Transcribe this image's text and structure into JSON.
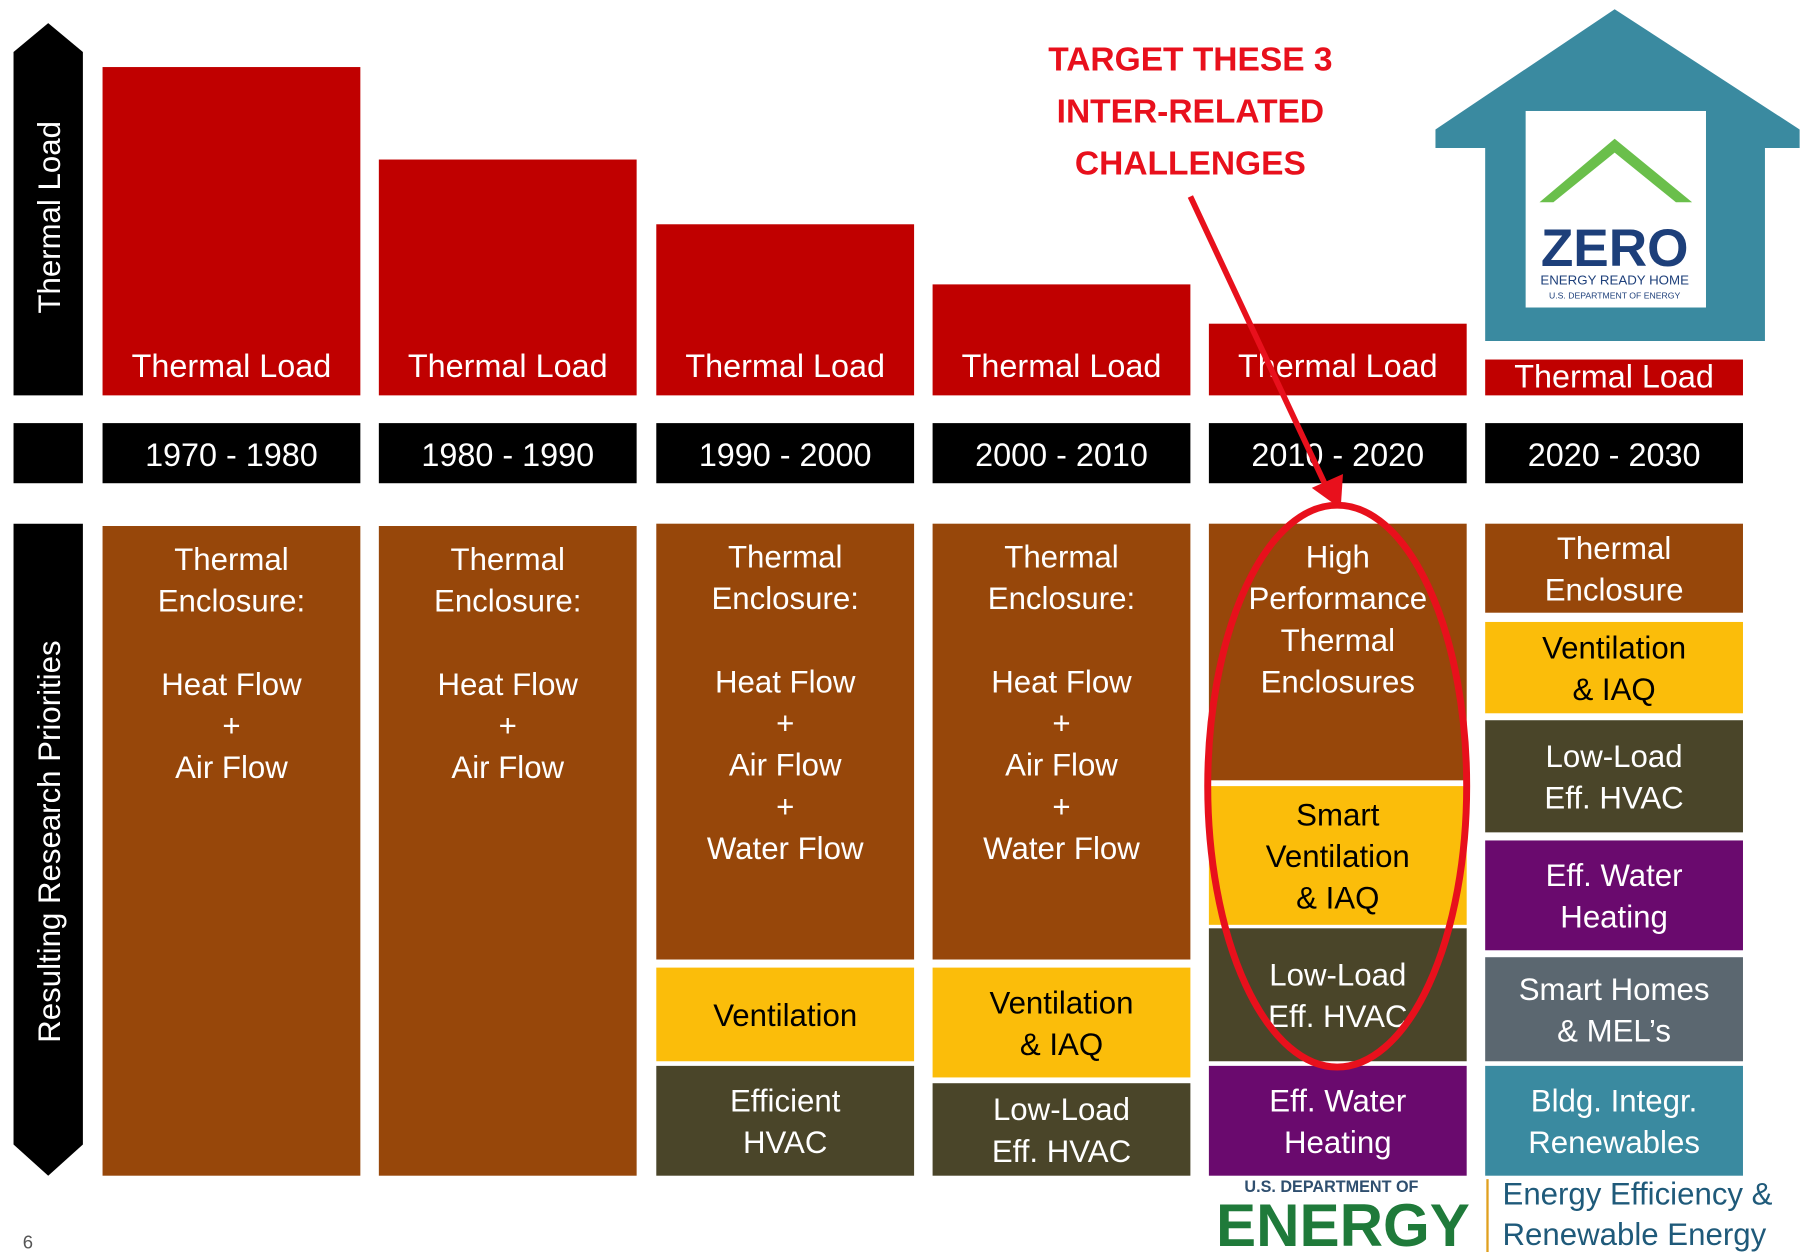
{
  "axis_labels": {
    "top": "Thermal Load",
    "bottom": "Resulting Research Priorities"
  },
  "annotation": [
    "TARGET THESE 3",
    "INTER-RELATED",
    "CHALLENGES"
  ],
  "columns": [
    {
      "thermal_load": "Thermal Load",
      "period": "1970 - 1980",
      "blocks": [
        {
          "paragraphs": [
            [
              "Thermal",
              "Enclosure:"
            ],
            [
              "Heat Flow",
              "+",
              "Air Flow"
            ]
          ]
        }
      ]
    },
    {
      "thermal_load": "Thermal Load",
      "period": "1980 - 1990",
      "blocks": [
        {
          "paragraphs": [
            [
              "Thermal",
              "Enclosure:"
            ],
            [
              "Heat Flow",
              "+",
              "Air Flow"
            ]
          ]
        }
      ]
    },
    {
      "thermal_load": "Thermal Load",
      "period": "1990 - 2000",
      "blocks": [
        {
          "paragraphs": [
            [
              "Thermal",
              "Enclosure:"
            ],
            [
              "Heat Flow",
              "+",
              "Air Flow",
              "+",
              "Water Flow"
            ]
          ]
        },
        {
          "paragraphs": [
            [
              "Ventilation"
            ]
          ]
        },
        {
          "paragraphs": [
            [
              "Efficient",
              "HVAC"
            ]
          ]
        }
      ]
    },
    {
      "thermal_load": "Thermal Load",
      "period": "2000 - 2010",
      "blocks": [
        {
          "paragraphs": [
            [
              "Thermal",
              "Enclosure:"
            ],
            [
              "Heat Flow",
              "+",
              "Air Flow",
              "+",
              "Water Flow"
            ]
          ]
        },
        {
          "paragraphs": [
            [
              "Ventilation",
              "& IAQ"
            ]
          ]
        },
        {
          "paragraphs": [
            [
              "Low-Load",
              "Eff. HVAC"
            ]
          ]
        }
      ]
    },
    {
      "thermal_load": "Thermal Load",
      "period": "2010 - 2020",
      "blocks": [
        {
          "paragraphs": [
            [
              "High",
              "Performance",
              "Thermal",
              "Enclosures"
            ]
          ]
        },
        {
          "paragraphs": [
            [
              "Smart",
              "Ventilation",
              "& IAQ"
            ]
          ]
        },
        {
          "paragraphs": [
            [
              "Low-Load",
              "Eff. HVAC"
            ]
          ]
        },
        {
          "paragraphs": [
            [
              "Eff. Water",
              "Heating"
            ]
          ]
        }
      ]
    },
    {
      "thermal_load": "Thermal Load",
      "period": "2020 - 2030",
      "blocks": [
        {
          "paragraphs": [
            [
              "Thermal",
              "Enclosure"
            ]
          ]
        },
        {
          "paragraphs": [
            [
              "Ventilation",
              "& IAQ"
            ]
          ]
        },
        {
          "paragraphs": [
            [
              "Low-Load",
              "Eff. HVAC"
            ]
          ]
        },
        {
          "paragraphs": [
            [
              "Eff. Water",
              "Heating"
            ]
          ]
        },
        {
          "paragraphs": [
            [
              "Smart Homes",
              "& MEL’s"
            ]
          ]
        },
        {
          "paragraphs": [
            [
              "Bldg. Integr.",
              "Renewables"
            ]
          ]
        }
      ]
    }
  ],
  "logo": {
    "word": "ZERO",
    "line1": "ENERGY READY HOME",
    "line2": "U.S. DEPARTMENT OF ENERGY"
  },
  "footer": {
    "doe_small": "U.S. DEPARTMENT OF",
    "doe_big": "ENERGY",
    "eere1": "Energy Efficiency &",
    "eere2": "Renewable Energy",
    "page": "6"
  }
}
